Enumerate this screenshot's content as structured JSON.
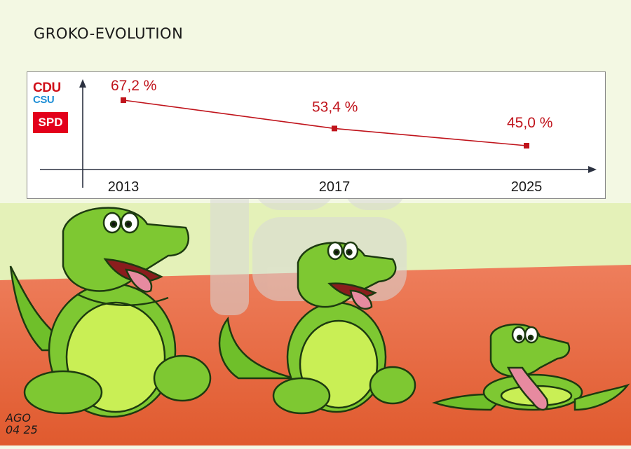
{
  "title": "GROKO-EVOLUTION",
  "logos": {
    "party1": "CDU",
    "party2": "CSU",
    "party3": "SPD"
  },
  "signature": {
    "line1": "AGO",
    "line2": "04 25"
  },
  "colors": {
    "line": "#c0141c",
    "wall": "#eef6d2",
    "floor": "#e86a43",
    "croc": "#7ec832",
    "belly": "#c9ef55"
  },
  "chart_data": {
    "type": "line",
    "title": "GROKO-EVOLUTION",
    "xlabel": "",
    "ylabel": "",
    "x": [
      "2013",
      "2017",
      "2025"
    ],
    "series": [
      {
        "values": [
          67.2,
          53.4,
          45.0
        ],
        "labels": [
          "67,2 %",
          "53,4 %",
          "45,0 %"
        ]
      }
    ],
    "ylim": [
      30,
      75
    ],
    "grid": false
  }
}
